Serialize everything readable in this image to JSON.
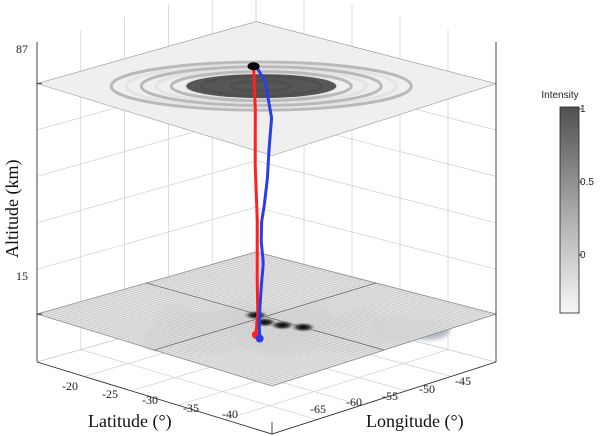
{
  "chart_data": {
    "type": "line",
    "title": "",
    "zlabel": "Altitude (km)",
    "xlabel": "Latitude (°)",
    "ylabel": "Longitude (°)",
    "zticks": [
      "15",
      "87"
    ],
    "zlim": [
      0,
      100
    ],
    "latitude_ticks": [
      "-20",
      "-25",
      "-30",
      "-35",
      "-40"
    ],
    "longitude_ticks": [
      "-65",
      "-60",
      "-55",
      "-50",
      "-45"
    ],
    "grid": true,
    "colorbar": {
      "title": "Intensity",
      "ticks": [
        "1",
        "0.5",
        "0"
      ],
      "range": [
        0,
        1
      ],
      "colors": [
        "#f2f2f2",
        "#4a4a4a"
      ]
    },
    "series": [
      {
        "color": "#ff2020",
        "points_alt": [
          15,
          20,
          30,
          45,
          60,
          75,
          87
        ],
        "points_lat": [
          -32.2,
          -31.8,
          -31.0,
          -29.8,
          -28.5,
          -27.3,
          -26.6
        ],
        "points_lon": [
          -58.2,
          -57.6,
          -56.8,
          -55.5,
          -54.3,
          -53.0,
          -52.4
        ]
      },
      {
        "color": "#2a3de8",
        "points_alt": [
          15,
          18,
          22,
          27,
          32,
          36,
          40,
          44,
          48,
          55,
          62,
          70,
          80,
          86,
          87
        ],
        "points_lat": [
          -32.9,
          -32.3,
          -31.7,
          -30.8,
          -30.2,
          -31.4,
          -30.5,
          -29.6,
          -29.0,
          -28.6,
          -27.8,
          -27.0,
          -26.1,
          -26.4,
          -26.6
        ],
        "points_lon": [
          -58.6,
          -58.0,
          -57.3,
          -56.2,
          -55.4,
          -56.7,
          -55.9,
          -54.9,
          -54.0,
          -53.3,
          -52.3,
          -51.2,
          -50.8,
          -51.9,
          -52.4
        ]
      }
    ],
    "planes": [
      {
        "altitude": 15,
        "type": "surface"
      },
      {
        "altitude": 87,
        "type": "surface"
      }
    ]
  }
}
